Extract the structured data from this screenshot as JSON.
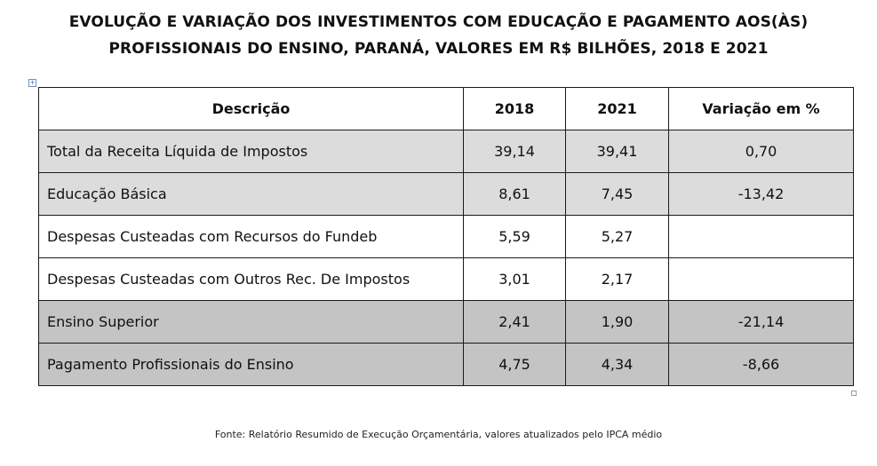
{
  "title": {
    "line1": "EVOLUÇÃO E VARIAÇÃO DOS INVESTIMENTOS COM EDUCAÇÃO E PAGAMENTO AOS(ÀS)",
    "line2": "PROFISSIONAIS DO ENSINO, PARANÁ, VALORES EM R$ BILHÕES, 2018 E 2021"
  },
  "table": {
    "headers": [
      "Descrição",
      "2018",
      "2021",
      "Variação em %"
    ],
    "rows": [
      {
        "desc": "Total da Receita Líquida de Impostos",
        "y2018": "39,14",
        "y2021": "39,41",
        "var": "0,70",
        "shade": "light"
      },
      {
        "desc": "Educação Básica",
        "y2018": "8,61",
        "y2021": "7,45",
        "var": "-13,42",
        "shade": "light"
      },
      {
        "desc": "Despesas Custeadas com Recursos do Fundeb",
        "y2018": "5,59",
        "y2021": "5,27",
        "var": "",
        "shade": "white"
      },
      {
        "desc": "Despesas Custeadas com Outros Rec. De Impostos",
        "y2018": "3,01",
        "y2021": "2,17",
        "var": "",
        "shade": "white"
      },
      {
        "desc": "Ensino Superior",
        "y2018": "2,41",
        "y2021": "1,90",
        "var": "-21,14",
        "shade": "dark"
      },
      {
        "desc": "Pagamento Profissionais do Ensino",
        "y2018": "4,75",
        "y2021": "4,34",
        "var": "-8,66",
        "shade": "dark"
      }
    ]
  },
  "source": "Fonte: Relatório Resumido de Execução Orçamentária, valores atualizados pelo IPCA médio",
  "icons": {
    "table_anchor": "move-handle-icon",
    "table_resize": "resize-handle-icon"
  }
}
